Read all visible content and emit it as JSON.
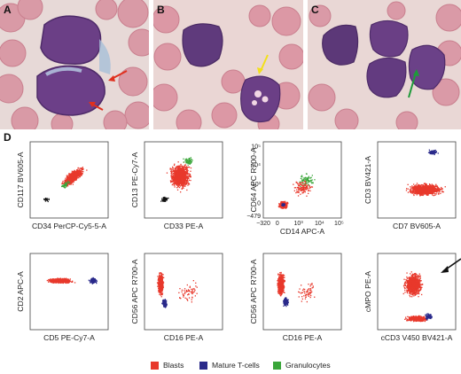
{
  "panels": {
    "a": "A",
    "b": "B",
    "c": "C",
    "d": "D"
  },
  "plots": [
    {
      "id": "p1",
      "ylabel": "CD117 BV605-A",
      "xlabel": "CD34 PerCP-Cy5-5-A",
      "yticks": [],
      "xticks": []
    },
    {
      "id": "p2",
      "ylabel": "CD13 PE-Cy7-A",
      "xlabel": "CD33 PE-A",
      "yticks": [],
      "xticks": []
    },
    {
      "id": "p3",
      "ylabel": "CD64 APC R700-A",
      "xlabel": "CD14 APC-A",
      "yticks": [
        "10⁵",
        "10⁴",
        "10³",
        "0",
        "−479"
      ],
      "xticks": [
        "−320",
        "0",
        "10³",
        "10⁴",
        "10⁵"
      ]
    },
    {
      "id": "p4",
      "ylabel": "CD3 BV421-A",
      "xlabel": "CD7 BV605-A",
      "yticks": [],
      "xticks": []
    },
    {
      "id": "p5",
      "ylabel": "CD2 APC-A",
      "xlabel": "CD5 PE-Cy7-A",
      "yticks": [],
      "xticks": []
    },
    {
      "id": "p6",
      "ylabel": "CD56 APC R700-A",
      "xlabel": "CD16 PE-A",
      "yticks": [],
      "xticks": []
    },
    {
      "id": "p7",
      "ylabel": "CD56 APC R700-A",
      "xlabel": "CD16 PE-A",
      "yticks": [],
      "xticks": []
    },
    {
      "id": "p8",
      "ylabel": "cMPO PE-A",
      "xlabel": "cCD3 V450 BV421-A",
      "yticks": [],
      "xticks": []
    }
  ],
  "legend": [
    {
      "label": "Blasts",
      "color": "#e8392c"
    },
    {
      "label": "Mature T-cells",
      "color": "#2a2a8a"
    },
    {
      "label": "Granulocytes",
      "color": "#3aa63a"
    }
  ],
  "colors": {
    "blast": "#e8392c",
    "tcell": "#2a2a8a",
    "gran": "#3aa63a",
    "other": "#111111",
    "arrow_red": "#e0301e",
    "arrow_yellow": "#f2e01a",
    "arrow_green": "#1e9a3a",
    "arrow_black": "#111111"
  }
}
